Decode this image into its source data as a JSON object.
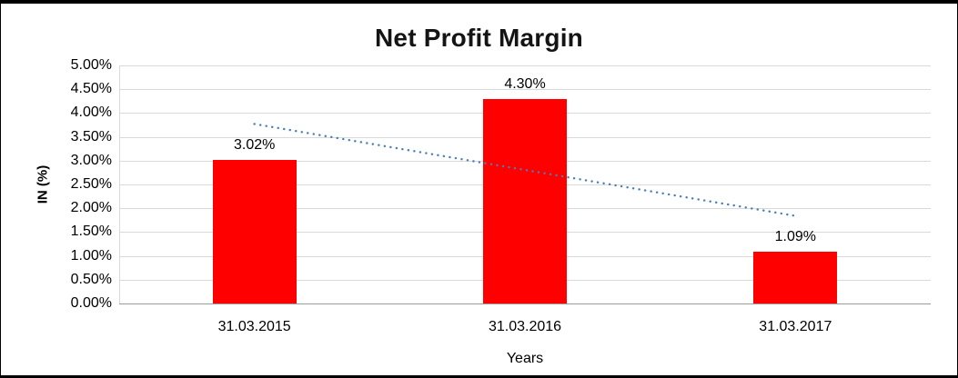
{
  "chart_data": {
    "type": "bar",
    "title": "Net Profit Margin",
    "xlabel": "Years",
    "ylabel": "IN (%)",
    "categories": [
      "31.03.2015",
      "31.03.2016",
      "31.03.2017"
    ],
    "values": [
      3.02,
      4.3,
      1.09
    ],
    "data_labels": [
      "3.02%",
      "4.30%",
      "1.09%"
    ],
    "ylim": [
      0,
      5
    ],
    "ytick_step": 0.5,
    "ytick_labels": [
      "5.00%",
      "4.50%",
      "4.00%",
      "3.50%",
      "3.00%",
      "2.50%",
      "2.00%",
      "1.50%",
      "1.00%",
      "0.50%",
      "0.00%"
    ],
    "grid": true,
    "legend": "none",
    "bar_color": "#ff0000",
    "gridline_color": "#d9d9d9",
    "axis_line_color": "#9b9b9b",
    "trendline": {
      "type": "linear",
      "style": "dotted",
      "color": "#4a7ebb",
      "start_value": 3.77,
      "end_value": 1.84
    }
  }
}
